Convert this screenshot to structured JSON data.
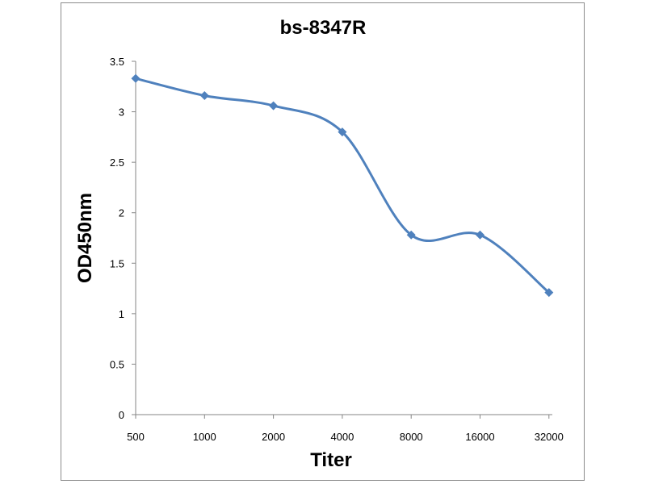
{
  "chart_data": {
    "type": "line",
    "title": "bs-8347R",
    "xlabel": "Titer",
    "ylabel": "OD450nm",
    "categories": [
      "500",
      "1000",
      "2000",
      "4000",
      "8000",
      "16000",
      "32000"
    ],
    "series": [
      {
        "values": [
          3.33,
          3.16,
          3.06,
          2.8,
          1.78,
          1.78,
          1.21
        ]
      }
    ],
    "ylim": [
      0,
      3.5
    ],
    "yticks": [
      "0",
      "0.5",
      "1",
      "1.5",
      "2",
      "2.5",
      "3",
      "3.5"
    ],
    "line_color": "#4F81BD",
    "marker": "diamond",
    "smooth": true,
    "grid": false,
    "legend": "none"
  }
}
